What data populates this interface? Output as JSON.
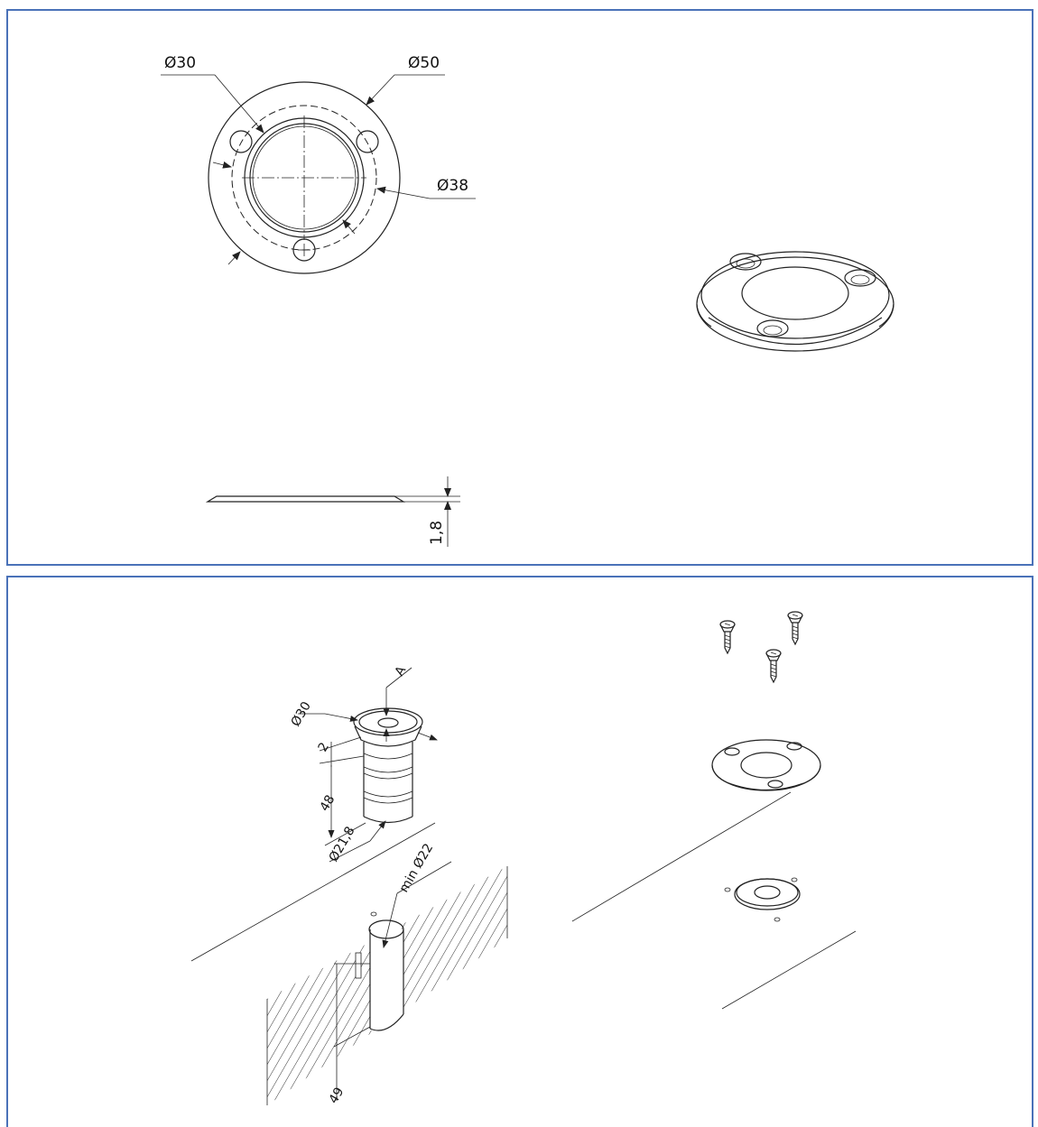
{
  "top_view": {
    "dim_inner": "Ø30",
    "dim_outer": "Ø50",
    "dim_bolt_circle": "Ø38",
    "dim_thickness": "1,8"
  },
  "install_view": {
    "dim_head": "Ø30",
    "dim_detail": "A",
    "dim_collar": "2",
    "dim_length": "48",
    "dim_body": "Ø21,8",
    "dim_hole": "min Ø22",
    "dim_depth": "49"
  },
  "colors": {
    "frame": "#4a72b8",
    "line": "#222222"
  }
}
